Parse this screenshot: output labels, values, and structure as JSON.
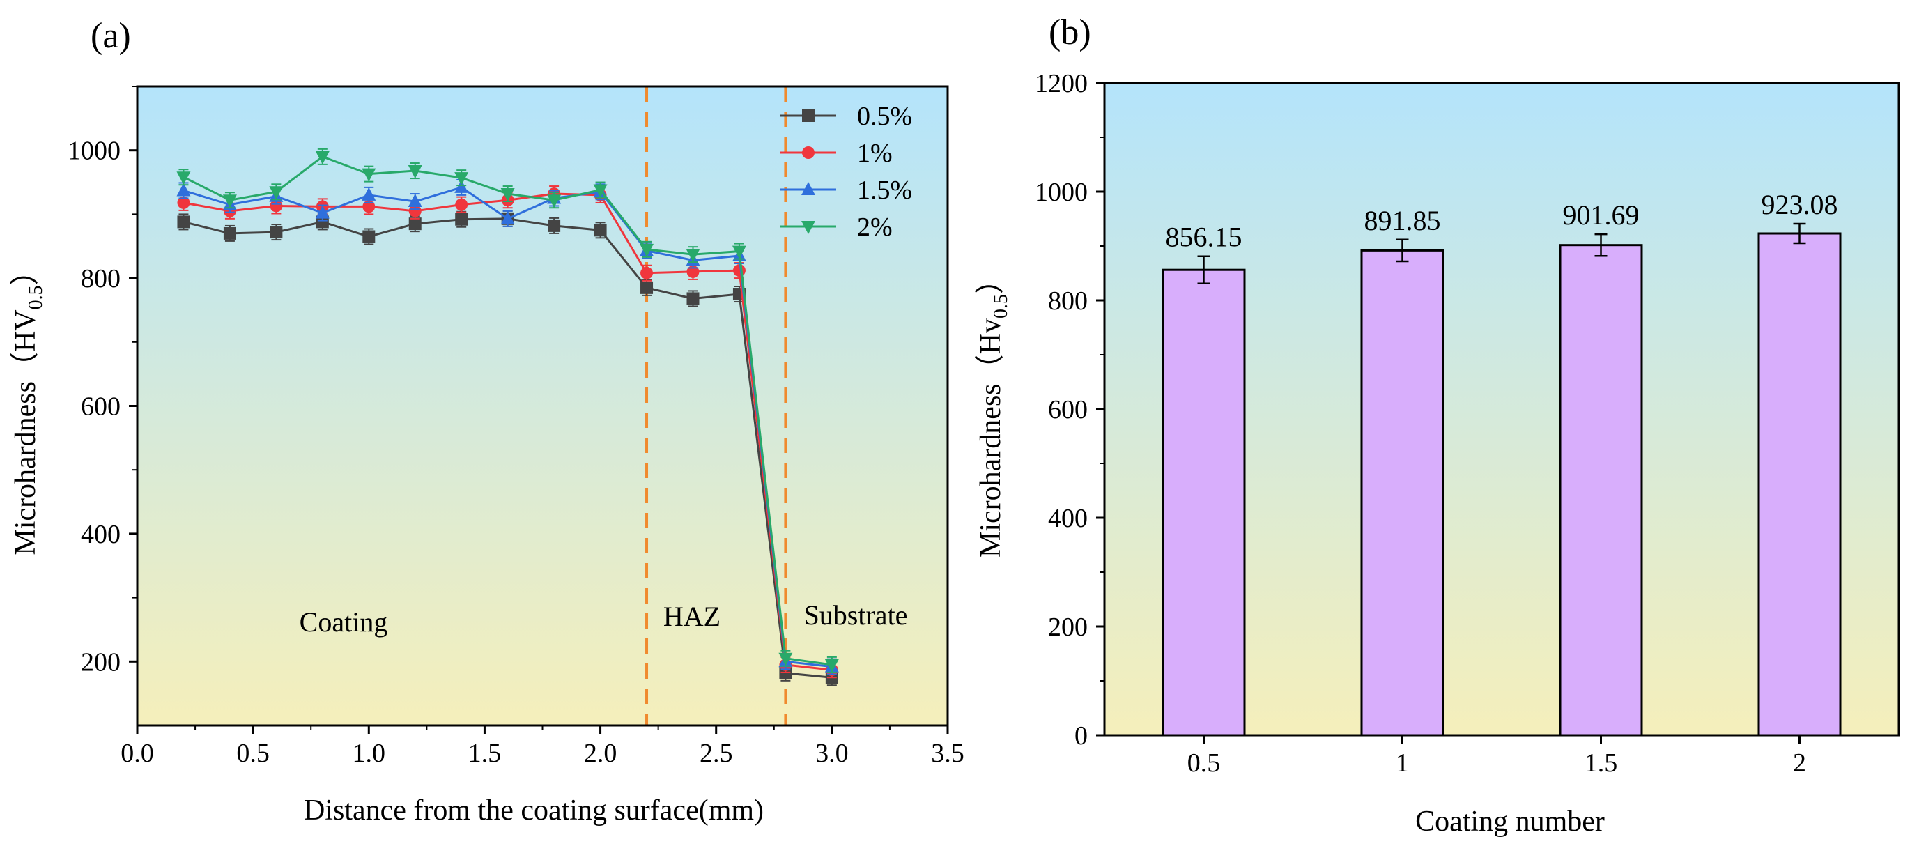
{
  "panels": {
    "a": {
      "label": "(a)",
      "xlabel": "Distance from the coating surface(mm)",
      "ylabel_main": "Microhardness（HV",
      "ylabel_sub": "0.5",
      "ylabel_end": "）",
      "regions": [
        "Coating",
        "HAZ",
        "Substrate"
      ]
    },
    "b": {
      "label": "(b)",
      "xlabel": "Coating number",
      "ylabel_main": "Microhardness（Hv",
      "ylabel_sub": "0.5",
      "ylabel_end": "）"
    }
  },
  "colors": {
    "gradient_top": "#b4e4fb",
    "gradient_bottom": "#f5efbb",
    "s05": "#444444",
    "s1": "#f0363d",
    "s15": "#2f6fdc",
    "s2": "#28a96a",
    "dash": "#f08a2e",
    "bar": "#d8aefc"
  },
  "chart_data": [
    {
      "type": "line",
      "title": "(a)",
      "xlabel": "Distance from the coating surface(mm)",
      "ylabel": "Microhardness（HV0.5）",
      "xlim": [
        0.0,
        3.5
      ],
      "ylim": [
        100,
        1100
      ],
      "xticks": [
        "0.0",
        "0.5",
        "1.0",
        "1.5",
        "2.0",
        "2.5",
        "3.0",
        "3.5"
      ],
      "yticks": [
        "200",
        "400",
        "600",
        "800",
        "1000"
      ],
      "x": [
        0.2,
        0.4,
        0.6,
        0.8,
        1.0,
        1.2,
        1.4,
        1.6,
        1.8,
        2.0,
        2.2,
        2.4,
        2.6,
        2.8,
        3.0
      ],
      "series": [
        {
          "name": "0.5%",
          "marker": "square",
          "values": [
            888,
            870,
            872,
            888,
            865,
            885,
            892,
            893,
            882,
            875,
            785,
            768,
            775,
            182,
            175
          ]
        },
        {
          "name": "1%",
          "marker": "circle",
          "values": [
            918,
            905,
            913,
            912,
            912,
            905,
            915,
            922,
            932,
            930,
            808,
            810,
            812,
            195,
            187
          ]
        },
        {
          "name": "1.5%",
          "marker": "triangle-up",
          "values": [
            937,
            915,
            928,
            902,
            930,
            920,
            942,
            893,
            925,
            935,
            843,
            828,
            835,
            200,
            192
          ]
        },
        {
          "name": "2%",
          "marker": "triangle-down",
          "values": [
            958,
            922,
            935,
            990,
            963,
            968,
            957,
            932,
            922,
            938,
            845,
            837,
            842,
            205,
            195
          ]
        }
      ],
      "vlines": [
        2.2,
        2.8
      ],
      "annotations": [
        {
          "text": "Coating",
          "x": 0.9,
          "y": 260
        },
        {
          "text": "HAZ",
          "x": 2.4,
          "y": 270
        },
        {
          "text": "Substrate",
          "x": 3.17,
          "y": 272
        }
      ],
      "legend": "top-right",
      "legend_entries": [
        "0.5%",
        "1%",
        "1.5%",
        "2%"
      ]
    },
    {
      "type": "bar",
      "title": "(b)",
      "xlabel": "Coating number",
      "ylabel": "Microhardness（Hv0.5）",
      "categories": [
        "0.5",
        "1",
        "1.5",
        "2"
      ],
      "values": [
        856.15,
        891.85,
        901.69,
        923.08
      ],
      "errors": [
        25,
        20,
        20,
        18
      ],
      "value_labels": [
        "856.15",
        "891.85",
        "901.69",
        "923.08"
      ],
      "ylim": [
        0,
        1200
      ],
      "yticks": [
        "0",
        "200",
        "400",
        "600",
        "800",
        "1000",
        "1200"
      ]
    }
  ]
}
